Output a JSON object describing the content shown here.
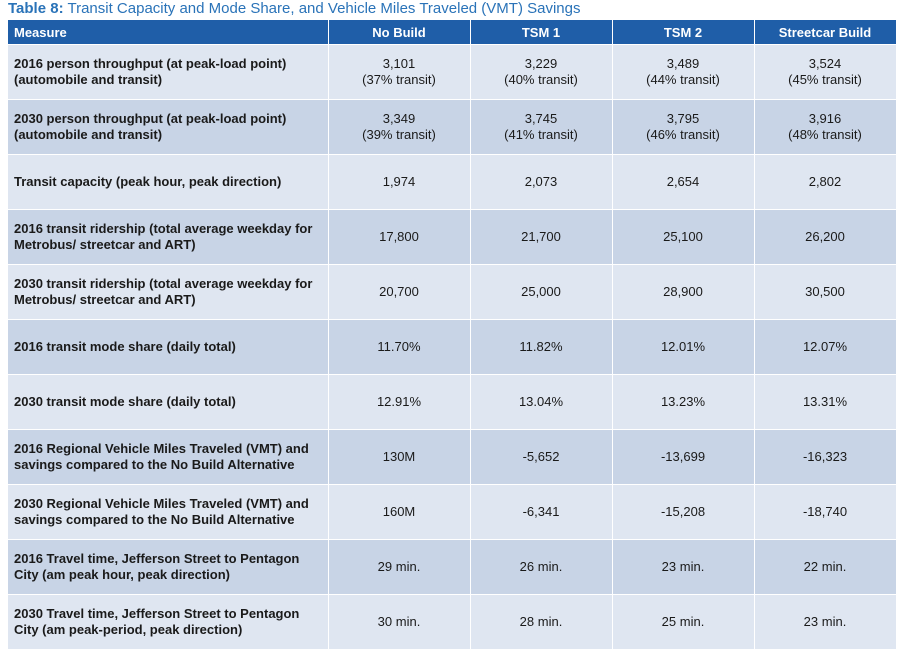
{
  "caption": {
    "lead": "Table 8:",
    "text": " Transit Capacity and Mode Share, and Vehicle Miles Traveled (VMT) Savings"
  },
  "columns": [
    "Measure",
    "No Build",
    "TSM 1",
    "TSM 2",
    "Streetcar Build"
  ],
  "rows": [
    {
      "measure": "2016 person throughput (at peak-load point) (automobile and transit)",
      "values": [
        {
          "main": "3,101",
          "sub": "(37% transit)"
        },
        {
          "main": "3,229",
          "sub": "(40% transit)"
        },
        {
          "main": "3,489",
          "sub": "(44% transit)"
        },
        {
          "main": "3,524",
          "sub": "(45% transit)"
        }
      ]
    },
    {
      "measure": "2030 person throughput (at peak-load point) (automobile and transit)",
      "values": [
        {
          "main": "3,349",
          "sub": "(39% transit)"
        },
        {
          "main": "3,745",
          "sub": "(41% transit)"
        },
        {
          "main": "3,795",
          "sub": "(46% transit)"
        },
        {
          "main": "3,916",
          "sub": "(48% transit)"
        }
      ]
    },
    {
      "measure": "Transit capacity (peak hour, peak direction)",
      "values": [
        {
          "main": "1,974"
        },
        {
          "main": "2,073"
        },
        {
          "main": "2,654"
        },
        {
          "main": "2,802"
        }
      ]
    },
    {
      "measure": "2016 transit ridership (total average weekday for Metrobus/ streetcar and ART)",
      "values": [
        {
          "main": "17,800"
        },
        {
          "main": "21,700"
        },
        {
          "main": "25,100"
        },
        {
          "main": "26,200"
        }
      ]
    },
    {
      "measure": "2030 transit ridership (total average weekday for Metrobus/ streetcar and ART)",
      "values": [
        {
          "main": "20,700"
        },
        {
          "main": "25,000"
        },
        {
          "main": "28,900"
        },
        {
          "main": "30,500"
        }
      ]
    },
    {
      "measure": "2016 transit mode share (daily total)",
      "values": [
        {
          "main": "11.70%"
        },
        {
          "main": "11.82%"
        },
        {
          "main": "12.01%"
        },
        {
          "main": "12.07%"
        }
      ]
    },
    {
      "measure": "2030 transit mode share (daily total)",
      "values": [
        {
          "main": "12.91%"
        },
        {
          "main": "13.04%"
        },
        {
          "main": "13.23%"
        },
        {
          "main": "13.31%"
        }
      ]
    },
    {
      "measure": "2016 Regional Vehicle Miles Traveled (VMT) and savings compared to the No Build Alternative",
      "values": [
        {
          "main": "130M"
        },
        {
          "main": "-5,652"
        },
        {
          "main": "-13,699"
        },
        {
          "main": "-16,323"
        }
      ]
    },
    {
      "measure": "2030 Regional Vehicle Miles Traveled (VMT) and savings compared to the No Build Alternative",
      "values": [
        {
          "main": "160M"
        },
        {
          "main": "-6,341"
        },
        {
          "main": "-15,208"
        },
        {
          "main": "-18,740"
        }
      ]
    },
    {
      "measure": "2016 Travel time, Jefferson Street to Pentagon City  (am peak hour, peak direction)",
      "values": [
        {
          "main": "29 min."
        },
        {
          "main": "26 min."
        },
        {
          "main": "23 min."
        },
        {
          "main": "22 min."
        }
      ]
    },
    {
      "measure": "2030 Travel time, Jefferson Street to Pentagon City  (am peak-period, peak direction)",
      "values": [
        {
          "main": "30 min."
        },
        {
          "main": "28 min."
        },
        {
          "main": "25 min."
        },
        {
          "main": "23 min."
        }
      ]
    }
  ]
}
